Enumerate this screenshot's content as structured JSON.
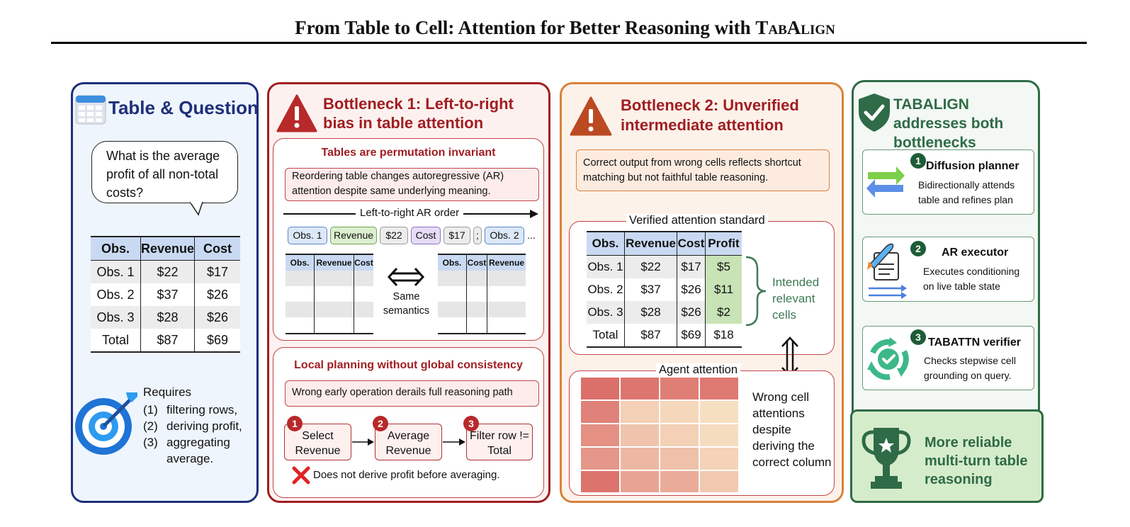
{
  "title": {
    "main": "From Table to Cell: Attention for Better Reasoning with ",
    "brand": "TabAlign"
  },
  "panel1": {
    "title": "Table & Question",
    "question": "What is the average profit of all non-total costs?",
    "table": {
      "headers": [
        "Obs.",
        "Revenue",
        "Cost"
      ],
      "rows": [
        [
          "Obs. 1",
          "$22",
          "$17"
        ],
        [
          "Obs. 2",
          "$37",
          "$26"
        ],
        [
          "Obs. 3",
          "$28",
          "$26"
        ],
        [
          "Total",
          "$87",
          "$69"
        ]
      ]
    },
    "requires": {
      "label": "Requires",
      "items": [
        {
          "n": "(1)",
          "t": "filtering rows,"
        },
        {
          "n": "(2)",
          "t": "deriving profit,"
        },
        {
          "n": "(3)",
          "t": "aggregating average."
        }
      ]
    }
  },
  "panel2": {
    "title": "Bottleneck 1: Left-to-right bias in table attention",
    "sub1": {
      "title": "Tables are permutation invariant",
      "desc": "Reordering table changes autoregressive (AR) attention despite same underlying meaning.",
      "arrow_label": "Left-to-right AR order",
      "chips": [
        "Obs. 1",
        "Revenue",
        "$22",
        "Cost",
        "$17",
        ";",
        "Obs. 2",
        "..."
      ],
      "left_headers": [
        "Obs.",
        "Revenue",
        "Cost"
      ],
      "right_headers": [
        "Obs.",
        "Cost",
        "Revenue"
      ],
      "same": "Same semantics"
    },
    "sub2": {
      "title": "Local planning without global consistency",
      "desc": "Wrong early operation derails full reasoning path",
      "steps": [
        {
          "n": "1",
          "t": "Select Revenue"
        },
        {
          "n": "2",
          "t": "Average Revenue"
        },
        {
          "n": "3",
          "t": "Filter row != Total"
        }
      ],
      "note": "Does not derive profit before averaging."
    }
  },
  "panel3": {
    "title": "Bottleneck 2: Unverified intermediate attention",
    "desc": "Correct output from wrong cells reflects shortcut matching but not faithful table reasoning.",
    "verified": {
      "label": "Verified attention standard",
      "headers": [
        "Obs.",
        "Revenue",
        "Cost",
        "Profit"
      ],
      "rows": [
        [
          "Obs. 1",
          "$22",
          "$17",
          "$5"
        ],
        [
          "Obs. 2",
          "$37",
          "$26",
          "$11"
        ],
        [
          "Obs. 3",
          "$28",
          "$26",
          "$2"
        ],
        [
          "Total",
          "$87",
          "$69",
          "$18"
        ]
      ],
      "intended": "Intended relevant cells"
    },
    "agent": {
      "label": "Agent attention",
      "note": "Wrong cell attentions despite deriving the correct column"
    }
  },
  "panel4": {
    "title": "TABALIGN addresses both bottlenecks",
    "cards": [
      {
        "n": "1",
        "title": "Diffusion planner",
        "desc": "Bidirectionally attends table and refines plan"
      },
      {
        "n": "2",
        "title": "AR executor",
        "desc": "Executes conditioning on live table state"
      },
      {
        "n": "3",
        "title": "TABATTN verifier",
        "desc": "Checks stepwise cell grounding on query."
      }
    ],
    "result": "More reliable multi-turn table reasoning"
  },
  "colors": {
    "navy": "#1f2f7a",
    "red": "#a01e22",
    "orange": "#d9823a",
    "green": "#2e6b46",
    "cell_green": "#c8e3b6",
    "header_blue": "#c9d9f2"
  },
  "heatmap": [
    [
      0.85,
      0.8,
      0.75,
      0.78
    ],
    [
      0.72,
      0.2,
      0.15,
      0.1
    ],
    [
      0.62,
      0.28,
      0.2,
      0.12
    ],
    [
      0.58,
      0.36,
      0.3,
      0.18
    ],
    [
      0.82,
      0.5,
      0.45,
      0.25
    ]
  ]
}
